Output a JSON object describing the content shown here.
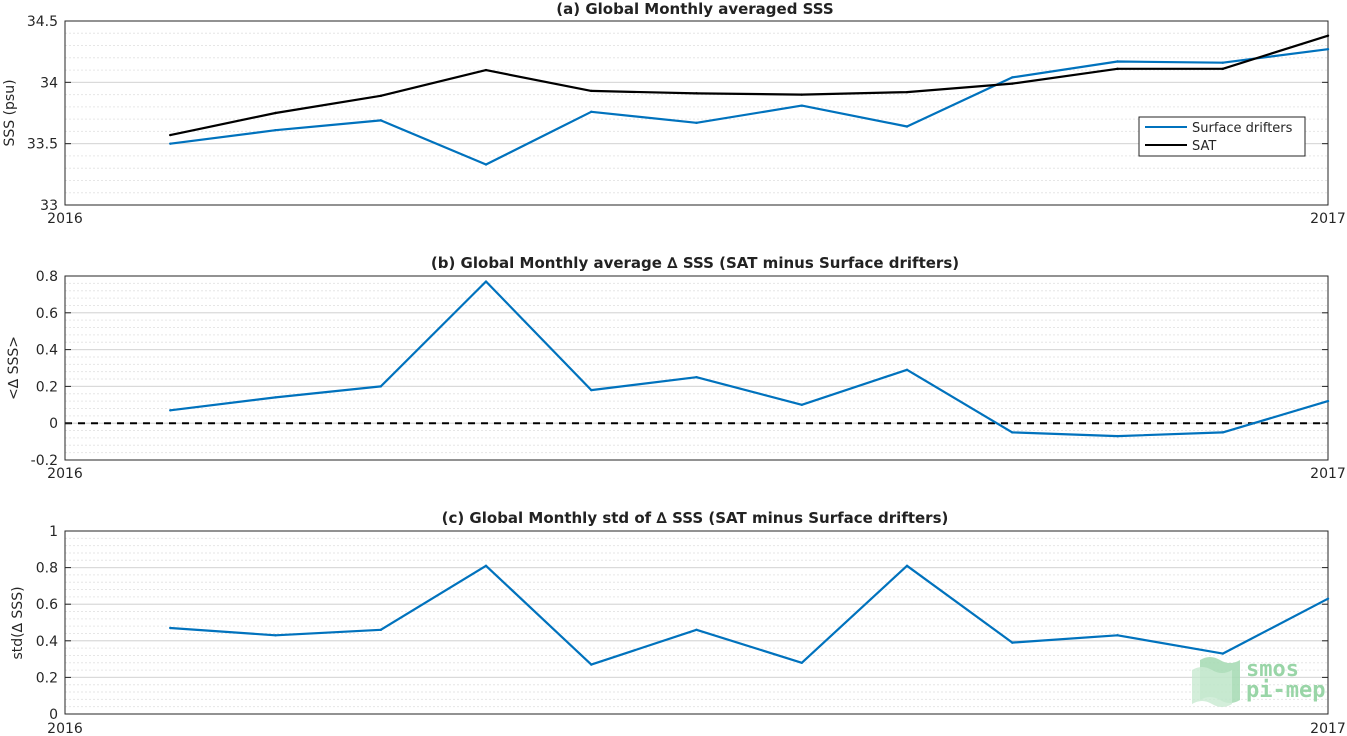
{
  "colors": {
    "drifters": "#0072BD",
    "sat": "#000000",
    "zero": "#000000",
    "logo": "#8fd19e"
  },
  "logo": {
    "line1": "smos",
    "line2": "pi-mep"
  },
  "chart_data": [
    {
      "type": "line",
      "title": "(a) Global Monthly averaged SSS",
      "ylabel": "SSS (psu)",
      "xlim": [
        "2016",
        "2017"
      ],
      "xtick_labels": [
        "2016",
        "2017"
      ],
      "ylim": [
        33,
        34.5
      ],
      "yticks": [
        33,
        33.5,
        34,
        34.5
      ],
      "ytick_labels": [
        "33",
        "33.5",
        "34",
        "34.5"
      ],
      "grid": "horizontal minor",
      "legend_position": "right",
      "x": [
        "2016-02",
        "2016-03",
        "2016-04",
        "2016-05",
        "2016-06",
        "2016-07",
        "2016-08",
        "2016-09",
        "2016-10",
        "2016-11",
        "2016-12",
        "2017-01"
      ],
      "series": [
        {
          "name": "Surface drifters",
          "color": "#0072BD",
          "values": [
            33.5,
            33.61,
            33.69,
            33.33,
            33.76,
            33.67,
            33.81,
            33.64,
            34.04,
            34.17,
            34.16,
            34.27
          ]
        },
        {
          "name": "SAT",
          "color": "#000000",
          "values": [
            33.57,
            33.75,
            33.89,
            34.1,
            33.93,
            33.91,
            33.9,
            33.92,
            33.99,
            34.11,
            34.11,
            34.38
          ]
        }
      ]
    },
    {
      "type": "line",
      "title": "(b) Global Monthly average ∆ SSS (SAT minus Surface drifters)",
      "ylabel": "<∆ SSS>",
      "xlim": [
        "2016",
        "2017"
      ],
      "xtick_labels": [
        "2016",
        "2017"
      ],
      "ylim": [
        -0.2,
        0.8
      ],
      "yticks": [
        -0.2,
        0,
        0.2,
        0.4,
        0.6,
        0.8
      ],
      "ytick_labels": [
        "-0.2",
        "0",
        "0.2",
        "0.4",
        "0.6",
        "0.8"
      ],
      "grid": "horizontal minor",
      "reference_line": 0,
      "x": [
        "2016-02",
        "2016-03",
        "2016-04",
        "2016-05",
        "2016-06",
        "2016-07",
        "2016-08",
        "2016-09",
        "2016-10",
        "2016-11",
        "2016-12",
        "2017-01"
      ],
      "series": [
        {
          "color": "#0072BD",
          "values": [
            0.07,
            0.14,
            0.2,
            0.77,
            0.18,
            0.25,
            0.1,
            0.29,
            -0.05,
            -0.07,
            -0.05,
            0.12
          ]
        }
      ]
    },
    {
      "type": "line",
      "title": "(c) Global Monthly std of ∆ SSS (SAT minus Surface drifters)",
      "ylabel": "std(∆ SSS)",
      "xlim": [
        "2016",
        "2017"
      ],
      "xtick_labels": [
        "2016",
        "2017"
      ],
      "ylim": [
        0,
        1
      ],
      "yticks": [
        0,
        0.2,
        0.4,
        0.6,
        0.8,
        1
      ],
      "ytick_labels": [
        "0",
        "0.2",
        "0.4",
        "0.6",
        "0.8",
        "1"
      ],
      "grid": "horizontal minor",
      "x": [
        "2016-02",
        "2016-03",
        "2016-04",
        "2016-05",
        "2016-06",
        "2016-07",
        "2016-08",
        "2016-09",
        "2016-10",
        "2016-11",
        "2016-12",
        "2017-01"
      ],
      "series": [
        {
          "color": "#0072BD",
          "values": [
            0.47,
            0.43,
            0.46,
            0.81,
            0.27,
            0.46,
            0.28,
            0.81,
            0.39,
            0.43,
            0.33,
            0.63
          ]
        }
      ]
    }
  ]
}
